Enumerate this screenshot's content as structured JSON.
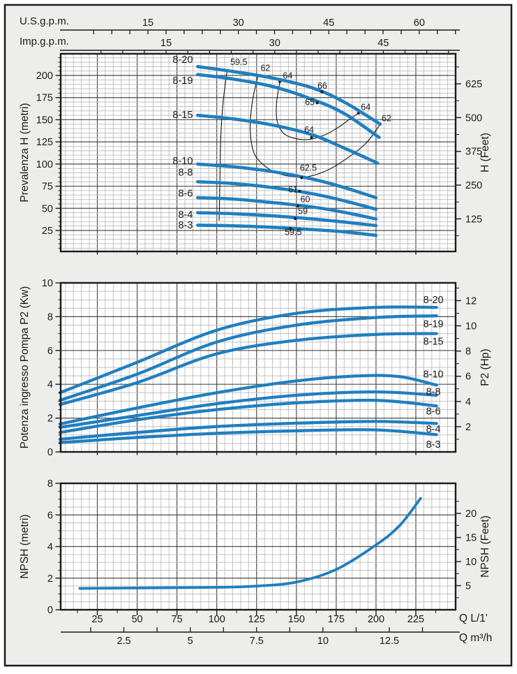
{
  "colors": {
    "page_bg": "#ffffff",
    "sheet_bg": "#ededeb",
    "plot_bg": "#ffffff",
    "curve": "#1f7fc0",
    "grid_major": "#4d4d4d",
    "grid_minor": "#c2c2c2",
    "border": "#1a1a1a",
    "text": "#1a1a1a",
    "contour": "#1a1a1a"
  },
  "scales": {
    "us_gpm": {
      "title": "U.S.g.p.m.",
      "l_per_unit": 3.7854,
      "tick_min": 6,
      "tick_max": 66,
      "tick_step": 3,
      "labels": [
        15,
        30,
        45,
        60
      ]
    },
    "imp_gpm": {
      "title": "Imp.g.p.m.",
      "l_per_unit": 4.5461,
      "tick_min": 6,
      "tick_max": 54,
      "tick_step": 3,
      "labels": [
        15,
        30,
        45
      ]
    },
    "l_min": {
      "title": "Q L/1'",
      "labels": [
        25,
        50,
        75,
        100,
        125,
        150,
        175,
        200,
        225
      ]
    },
    "m3_h": {
      "title": "Q m³/h",
      "l_per_unit": 16.667,
      "tick_min": 1.25,
      "tick_max": 13.75,
      "tick_step": 1.25,
      "labels": [
        2.5,
        5,
        7.5,
        10,
        12.5
      ]
    }
  },
  "chart_data": [
    {
      "id": "head-capacity",
      "type": "line",
      "ylabel": "Prevalenza H (metri)",
      "ylabel_right": "H (Feet)",
      "xlim": [
        0,
        250
      ],
      "ylim": [
        0,
        225
      ],
      "yticks": [
        25,
        50,
        75,
        100,
        125,
        150,
        175,
        200
      ],
      "yticks_right": [
        125,
        250,
        375,
        500,
        625
      ],
      "right_units_per_left": 3.2808,
      "series": [
        {
          "name": "8-20",
          "label_q": 85,
          "label_v": 218,
          "points": [
            [
              88,
              210
            ],
            [
              110,
              204.5
            ],
            [
              135,
              197
            ],
            [
              160,
              186
            ],
            [
              180,
              170
            ],
            [
              202.6,
              145
            ]
          ]
        },
        {
          "name": "8-19",
          "label_q": 85,
          "label_v": 194.3,
          "points": [
            [
              88,
              201
            ],
            [
              110,
              196
            ],
            [
              135,
              187.5
            ],
            [
              160,
              173
            ],
            [
              180,
              157
            ],
            [
              202,
              130
            ]
          ]
        },
        {
          "name": "8-15",
          "label_q": 85,
          "label_v": 156,
          "points": [
            [
              88,
              155
            ],
            [
              110,
              151
            ],
            [
              135,
              144
            ],
            [
              160,
              133
            ],
            [
              180,
              118
            ],
            [
              201,
              101
            ]
          ]
        },
        {
          "name": "8-10",
          "label_q": 85,
          "label_v": 104,
          "points": [
            [
              88,
              100
            ],
            [
              110,
              97
            ],
            [
              135,
              91.5
            ],
            [
              160,
              83
            ],
            [
              180,
              73.5
            ],
            [
              200,
              62
            ]
          ]
        },
        {
          "name": "8-8",
          "label_q": 85,
          "label_v": 91,
          "points": [
            [
              88,
              80
            ],
            [
              110,
              78
            ],
            [
              135,
              73.5
            ],
            [
              160,
              66.5
            ],
            [
              180,
              58.5
            ],
            [
              200,
              49
            ]
          ]
        },
        {
          "name": "8-6",
          "label_q": 85,
          "label_v": 67,
          "points": [
            [
              88,
              62
            ],
            [
              110,
              60.5
            ],
            [
              135,
              56.5
            ],
            [
              160,
              51.5
            ],
            [
              180,
              45.5
            ],
            [
              200,
              38
            ]
          ]
        },
        {
          "name": "8-4",
          "label_q": 85,
          "label_v": 43.3,
          "points": [
            [
              88,
              45
            ],
            [
              110,
              44
            ],
            [
              135,
              41.5
            ],
            [
              160,
              38
            ],
            [
              180,
              34.5
            ],
            [
              200,
              30.5
            ]
          ]
        },
        {
          "name": "8-3",
          "label_q": 85,
          "label_v": 31.5,
          "points": [
            [
              88,
              31
            ],
            [
              110,
              30.3
            ],
            [
              135,
              28.6
            ],
            [
              160,
              26
            ],
            [
              180,
              23.5
            ],
            [
              200,
              19.5
            ]
          ]
        }
      ],
      "efficiency_contours": [
        {
          "labels": [
            {
              "text": "59.5",
              "pos": [
                108.5,
                212
              ],
              "anchor": "start"
            }
          ],
          "dots": [],
          "points": [
            [
              106.5,
              205.5
            ],
            [
              104,
              170
            ],
            [
              102.5,
              130
            ],
            [
              102,
              85
            ],
            [
              101.5,
              36
            ]
          ]
        },
        {
          "labels": [
            {
              "text": "62",
              "pos": [
                127.5,
                205
              ],
              "anchor": "start"
            },
            {
              "text": "62",
              "pos": [
                203.5,
                148.5
              ],
              "anchor": "start"
            }
          ],
          "dots": [
            [
              126,
              200
            ],
            [
              202.6,
              145
            ]
          ],
          "points": [
            [
              126,
              200
            ],
            [
              122.5,
              172
            ],
            [
              121,
              140
            ],
            [
              123.5,
              112
            ],
            [
              131.5,
              96
            ],
            [
              141,
              88
            ],
            [
              150,
              85.5
            ],
            [
              158,
              86
            ],
            [
              170,
              93.5
            ],
            [
              183,
              108
            ],
            [
              194,
              124
            ],
            [
              202.6,
              145
            ]
          ]
        },
        {
          "labels": [
            {
              "text": "64",
              "pos": [
                141.5,
                196.5
              ],
              "anchor": "start"
            },
            {
              "text": "64",
              "pos": [
                190.5,
                161
              ],
              "anchor": "start"
            }
          ],
          "dots": [
            [
              139.6,
              193
            ],
            [
              189,
              157.5
            ]
          ],
          "points": [
            [
              139.6,
              193
            ],
            [
              137.5,
              168
            ],
            [
              138,
              148
            ],
            [
              142,
              134.5
            ],
            [
              150,
              128.5
            ],
            [
              159,
              128
            ],
            [
              168,
              133
            ],
            [
              176,
              141
            ],
            [
              183,
              150
            ],
            [
              189,
              157.5
            ]
          ]
        }
      ],
      "efficiency_marks": [
        {
          "text": "66",
          "dot": [
            166,
            181.5
          ],
          "pos": [
            163.2,
            185
          ],
          "anchor": "start"
        },
        {
          "text": "65",
          "dot": [
            163,
            169
          ],
          "pos": [
            161.5,
            166.5
          ],
          "anchor": "end"
        },
        {
          "text": "64",
          "dot": [
            159.5,
            130
          ],
          "pos": [
            158,
            135.5
          ],
          "anchor": "middle"
        },
        {
          "text": "62.5",
          "dot": [
            153.3,
            84.5
          ],
          "pos": [
            157.5,
            92.5
          ],
          "anchor": "middle"
        },
        {
          "text": "61",
          "dot": [
            152,
            69.5
          ],
          "pos": [
            151,
            68
          ],
          "anchor": "end"
        },
        {
          "text": "60",
          "dot": [
            151,
            52.7
          ],
          "pos": [
            152.5,
            57
          ],
          "anchor": "start"
        },
        {
          "text": "59",
          "dot": [
            149.3,
            38.4
          ],
          "pos": [
            151,
            43.5
          ],
          "anchor": "start"
        },
        {
          "text": "59.5",
          "dot": [
            146.2,
            27.3
          ],
          "pos": [
            148,
            20
          ],
          "anchor": "middle"
        }
      ]
    },
    {
      "id": "power",
      "type": "line",
      "ylabel": "Potenza ingresso Pompa P2 (Kw)",
      "ylabel_right": "P2 (Hp)",
      "xlim": [
        0,
        250
      ],
      "ylim": [
        0,
        10
      ],
      "yticks": [
        0,
        2,
        4,
        6,
        8,
        10
      ],
      "yticks_right": [
        2,
        4,
        6,
        8,
        10,
        12
      ],
      "right_units_per_left": 1.341,
      "series": [
        {
          "name": "8-20",
          "label_q": 236,
          "label_v": 9.0,
          "points": [
            [
              1.5,
              3.5
            ],
            [
              50,
              5.3
            ],
            [
              100,
              7.2
            ],
            [
              150,
              8.2
            ],
            [
              200,
              8.55
            ],
            [
              238,
              8.55
            ]
          ]
        },
        {
          "name": "8-19",
          "label_q": 236,
          "label_v": 7.58,
          "points": [
            [
              1.5,
              3.05
            ],
            [
              50,
              4.6
            ],
            [
              100,
              6.5
            ],
            [
              150,
              7.5
            ],
            [
              200,
              7.95
            ],
            [
              238,
              8.05
            ]
          ]
        },
        {
          "name": "8-15",
          "label_q": 236,
          "label_v": 6.55,
          "points": [
            [
              1.5,
              2.8
            ],
            [
              50,
              4.1
            ],
            [
              100,
              5.8
            ],
            [
              150,
              6.6
            ],
            [
              200,
              6.95
            ],
            [
              238,
              7.0
            ]
          ]
        },
        {
          "name": "8-10",
          "label_q": 236,
          "label_v": 4.6,
          "points": [
            [
              1.5,
              1.65
            ],
            [
              50,
              2.6
            ],
            [
              100,
              3.5
            ],
            [
              150,
              4.2
            ],
            [
              190,
              4.5
            ],
            [
              215,
              4.45
            ],
            [
              238,
              3.95
            ]
          ]
        },
        {
          "name": "8-8",
          "label_q": 236,
          "label_v": 3.57,
          "points": [
            [
              1.5,
              1.45
            ],
            [
              50,
              2.15
            ],
            [
              100,
              2.85
            ],
            [
              150,
              3.35
            ],
            [
              200,
              3.55
            ],
            [
              238,
              3.35
            ]
          ]
        },
        {
          "name": "8-6",
          "label_q": 236,
          "label_v": 2.42,
          "points": [
            [
              1.5,
              1.15
            ],
            [
              50,
              1.9
            ],
            [
              100,
              2.5
            ],
            [
              150,
              2.9
            ],
            [
              200,
              3.05
            ],
            [
              238,
              2.72
            ]
          ]
        },
        {
          "name": "8-4",
          "label_q": 236,
          "label_v": 1.37,
          "points": [
            [
              1.5,
              0.75
            ],
            [
              50,
              1.15
            ],
            [
              100,
              1.5
            ],
            [
              150,
              1.7
            ],
            [
              200,
              1.8
            ],
            [
              238,
              1.68
            ]
          ]
        },
        {
          "name": "8-3",
          "label_q": 236,
          "label_v": 0.46,
          "points": [
            [
              1.5,
              0.55
            ],
            [
              50,
              0.85
            ],
            [
              100,
              1.1
            ],
            [
              150,
              1.25
            ],
            [
              200,
              1.3
            ],
            [
              238,
              1.02
            ]
          ]
        }
      ],
      "efficiency_contours": [],
      "efficiency_marks": []
    },
    {
      "id": "npsh",
      "type": "line",
      "ylabel": "NPSH (metri)",
      "ylabel_right": "NPSH (Feet)",
      "xlim": [
        0,
        250
      ],
      "ylim": [
        0,
        8
      ],
      "yticks": [
        0,
        2,
        4,
        6,
        8
      ],
      "yticks_right": [
        5,
        10,
        15,
        20
      ],
      "right_units_per_left": 3.2808,
      "series": [
        {
          "name": "NPSH",
          "points": [
            [
              14,
              1.35
            ],
            [
              50,
              1.38
            ],
            [
              100,
              1.42
            ],
            [
              125,
              1.5
            ],
            [
              150,
              1.75
            ],
            [
              175,
              2.55
            ],
            [
              200,
              4.1
            ],
            [
              215,
              5.35
            ],
            [
              228,
              7.05
            ]
          ]
        }
      ],
      "efficiency_contours": [],
      "efficiency_marks": []
    }
  ]
}
